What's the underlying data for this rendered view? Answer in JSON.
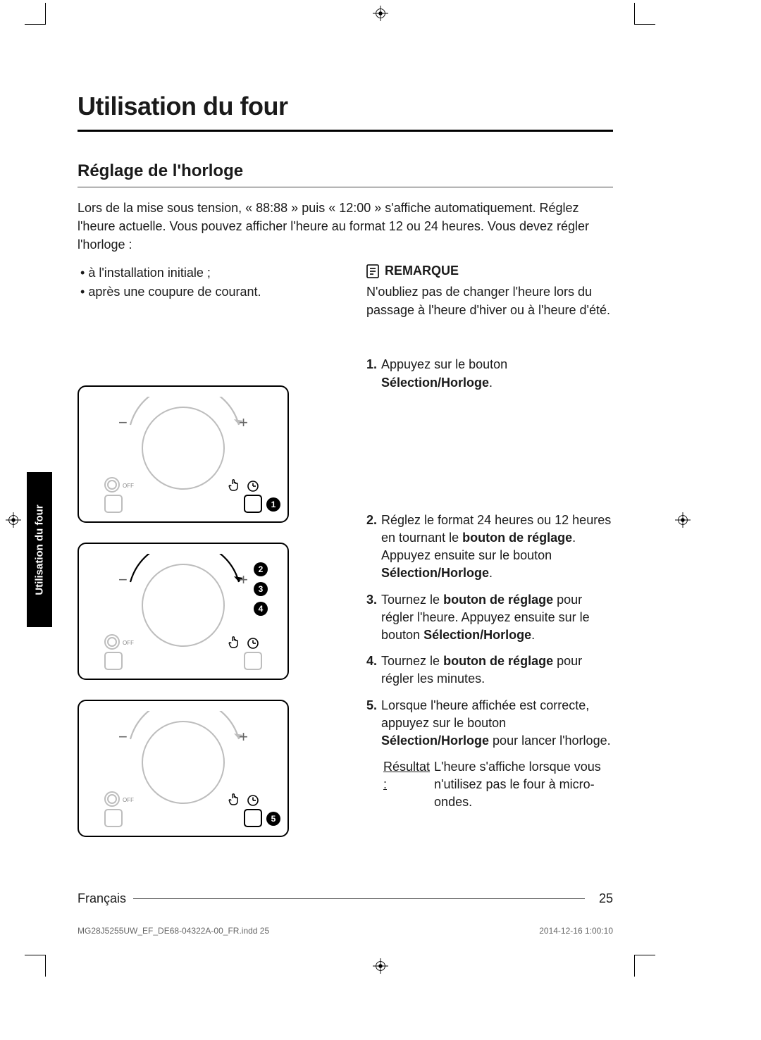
{
  "page": {
    "title": "Utilisation du four",
    "section_title": "Réglage de l'horloge",
    "intro": "Lors de la mise sous tension, « 88:88 » puis « 12:00 » s'affiche automatiquement. Réglez l'heure actuelle. Vous pouvez afficher l'heure au format 12 ou 24 heures. Vous devez régler l'horloge :",
    "bullets": [
      "à l'installation initiale ;",
      "après une coupure de courant."
    ],
    "note_label": "REMARQUE",
    "note_body": "N'oubliez pas de changer l'heure lors du passage à l'heure d'hiver ou à l'heure d'été.",
    "steps": [
      {
        "n": "1.",
        "pre": "Appuyez sur le bouton ",
        "b1": "Sélection/Horloge",
        "post": "."
      },
      {
        "n": "2.",
        "t": "Réglez le format 24 heures ou 12 heures en tournant le ",
        "b1": "bouton de réglage",
        "mid": ". Appuyez ensuite sur le bouton ",
        "b2": "Sélection/Horloge",
        "post": "."
      },
      {
        "n": "3.",
        "t": "Tournez le ",
        "b1": "bouton de réglage",
        "mid": " pour régler l'heure. Appuyez ensuite sur le bouton ",
        "b2": "Sélection/Horloge",
        "post": "."
      },
      {
        "n": "4.",
        "t": "Tournez le ",
        "b1": "bouton de réglage",
        "post": " pour régler les minutes."
      },
      {
        "n": "5.",
        "t": "Lorsque l'heure affichée est correcte, appuyez sur le bouton ",
        "b1": "Sélection/Horloge",
        "post": " pour lancer l'horloge."
      }
    ],
    "result_label": "Résultat :",
    "result_body": "L'heure s'affiche lorsque vous n'utilisez pas le four à micro-ondes.",
    "footer_lang": "Français",
    "page_number": "25",
    "side_tab": "Utilisation du four",
    "indd": "MG28J5255UW_EF_DE68-04322A-00_FR.indd   25",
    "print_ts": "2014-12-16   1:00:10"
  },
  "panels": [
    {
      "badges_right": [
        "1"
      ],
      "highlight_button": true,
      "arc_color": "#bdbdbd"
    },
    {
      "badges_side": [
        "2",
        "3",
        "4"
      ],
      "highlight_button": false,
      "arc_color": "#000000"
    },
    {
      "badges_right": [
        "5"
      ],
      "highlight_button": true,
      "arc_color": "#bdbdbd"
    }
  ],
  "style": {
    "text_color": "#1a1a1a",
    "muted": "#bdbdbd",
    "title_fontsize": 36,
    "body_fontsize": 18
  }
}
